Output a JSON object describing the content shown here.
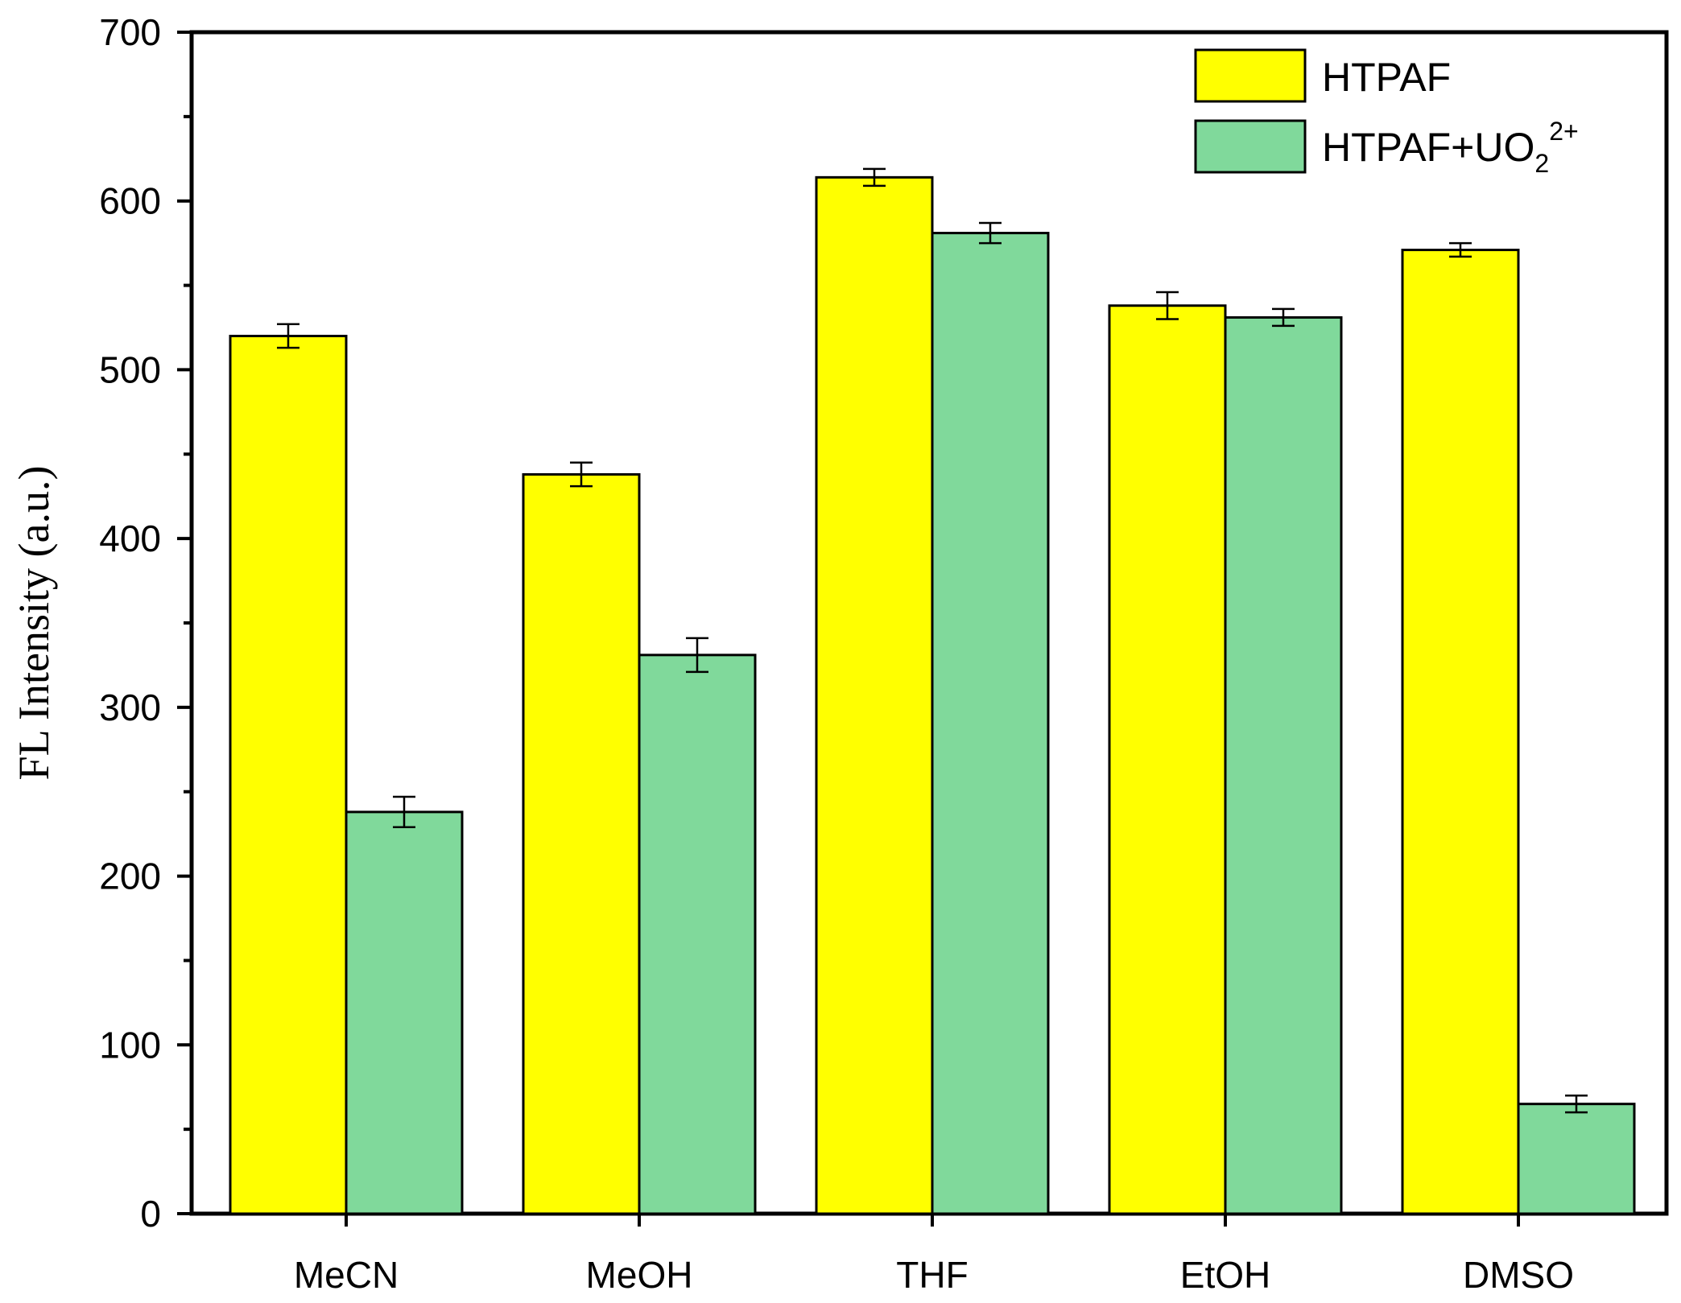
{
  "chart_data": {
    "type": "bar",
    "categories": [
      "MeCN",
      "MeOH",
      "THF",
      "EtOH",
      "DMSO"
    ],
    "series": [
      {
        "name": "HTPAF",
        "color": "#ffff00",
        "values": [
          520,
          438,
          614,
          538,
          571
        ],
        "errors": [
          7,
          7,
          5,
          8,
          4
        ]
      },
      {
        "name": "HTPAF+UO22+",
        "legend_main": "HTPAF+UO",
        "legend_sub": "2",
        "legend_sup": "2+",
        "color": "#80d99b",
        "values": [
          238,
          331,
          581,
          531,
          65
        ],
        "errors": [
          9,
          10,
          6,
          5,
          5
        ]
      }
    ],
    "xlabel": "",
    "ylabel": "FL Intensity (a.u.)",
    "ylim": [
      0,
      700
    ],
    "yticks": [
      0,
      100,
      200,
      300,
      400,
      500,
      600,
      700
    ],
    "grid": false,
    "legend_position": "top-right"
  }
}
